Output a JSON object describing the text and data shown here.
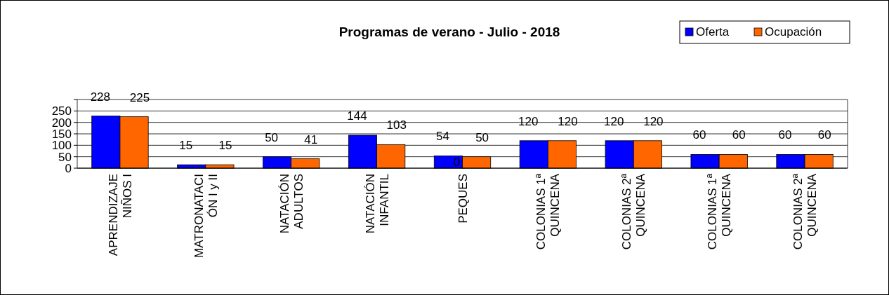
{
  "chart_data": {
    "type": "bar",
    "title": "Programas de verano - Julio - 2018",
    "categories": [
      "APRENDIZAJE NIÑOS I",
      "MATRONATACIÓN I y II",
      "NATACIÓN ADULTOS",
      "NATACIÓN INFANTIL",
      "PEQUES",
      "COLONIAS 1ª QUINCENA",
      "COLONIAS 2ª QUINCENA",
      "COLONIAS 1ª QUINCENA",
      "COLONIAS 2ª QUINCENA"
    ],
    "series": [
      {
        "name": "Oferta",
        "color": "#0000ff",
        "values": [
          228,
          15,
          50,
          144,
          54,
          120,
          120,
          60,
          60
        ]
      },
      {
        "name": "Ocupación",
        "color": "#ff6600",
        "values": [
          225,
          15,
          41,
          103,
          50,
          120,
          120,
          60,
          60
        ]
      }
    ],
    "ylim": [
      0,
      300
    ],
    "yticks": [
      0,
      50,
      100,
      150,
      200,
      250,
      {
        "value": 300,
        "label": null
      }
    ],
    "grid": "y",
    "legend": "top right",
    "data_labels": true,
    "annotations": [
      {
        "text": "0",
        "x": "PEQUES",
        "y": 10
      }
    ]
  }
}
